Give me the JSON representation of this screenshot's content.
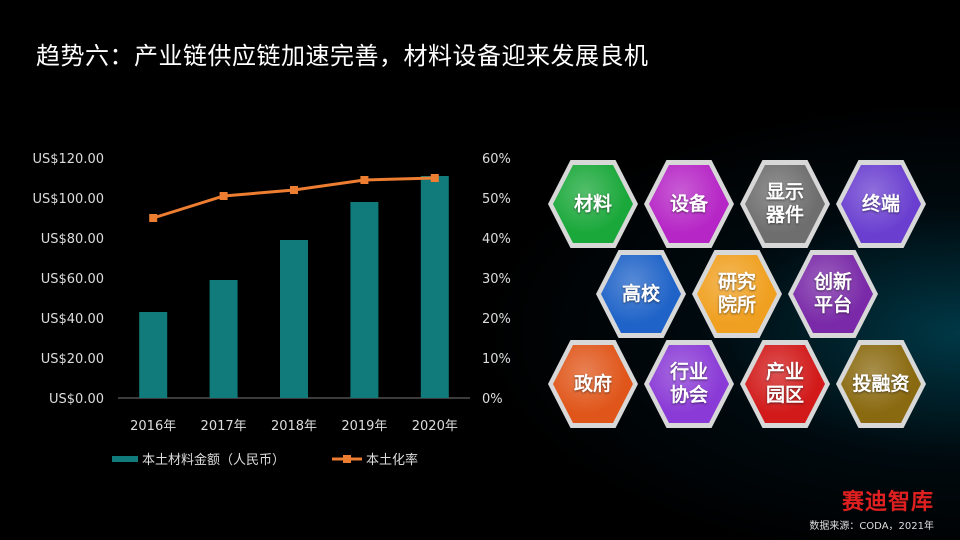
{
  "title": "趋势六：产业链供应链加速完善，材料设备迎来发展良机",
  "chart_data": {
    "type": "bar",
    "categories": [
      "2016年",
      "2017年",
      "2018年",
      "2019年",
      "2020年"
    ],
    "series": [
      {
        "name": "本土材料金额（人民币）",
        "kind": "bar",
        "axis": "left",
        "color": "#117a7a",
        "values": [
          43,
          59,
          79,
          98,
          111
        ]
      },
      {
        "name": "本土化率",
        "kind": "line",
        "axis": "right",
        "color": "#ed7d31",
        "values": [
          45,
          50.5,
          52,
          54.5,
          55
        ]
      }
    ],
    "y_left": {
      "min": 0,
      "max": 120,
      "ticks": [
        "US$0.00",
        "US$20.00",
        "US$40.00",
        "US$60.00",
        "US$80.00",
        "US$100.00",
        "US$120.00"
      ]
    },
    "y_right": {
      "min": 0,
      "max": 60,
      "ticks": [
        "0%",
        "10%",
        "20%",
        "30%",
        "40%",
        "50%",
        "60%"
      ]
    },
    "legend_position": "bottom",
    "grid": false
  },
  "hexagons": [
    {
      "label": "材料",
      "color": "#1aa83a"
    },
    {
      "label": "设备",
      "color": "#b626c6"
    },
    {
      "label": "显示\n器件",
      "color": "#6e6e6e"
    },
    {
      "label": "终端",
      "color": "#6a3fd0"
    },
    {
      "label": "高校",
      "color": "#1f63c8"
    },
    {
      "label": "研究\n院所",
      "color": "#f0a020"
    },
    {
      "label": "创新\n平台",
      "color": "#7a2aa8"
    },
    {
      "label": "政府",
      "color": "#e0561a"
    },
    {
      "label": "行业\n协会",
      "color": "#8a3ad6"
    },
    {
      "label": "产业\n园区",
      "color": "#d21a1a"
    },
    {
      "label": "投融资",
      "color": "#8a6a10"
    }
  ],
  "brand": "赛迪智库",
  "source": "数据来源：CODA，2021年"
}
